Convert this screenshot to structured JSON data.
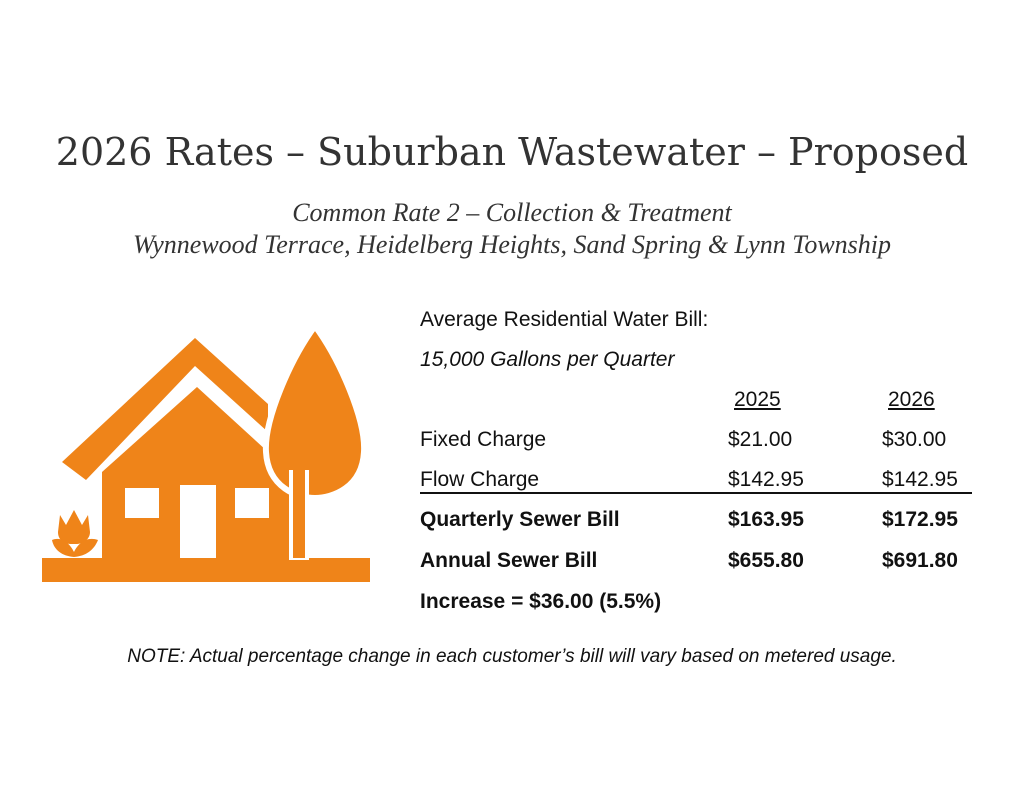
{
  "title": "2026 Rates – Suburban Wastewater – Proposed",
  "subtitle": [
    "Common Rate 2 – Collection & Treatment",
    "Wynnewood Terrace, Heidelberg Heights, Sand Spring & Lynn Township"
  ],
  "info": {
    "heading": "Average Residential Water Bill:",
    "usage": "15,000 Gallons per Quarter"
  },
  "table": {
    "columns": [
      "2025",
      "2026"
    ],
    "rows": [
      [
        "Fixed Charge",
        "$21.00",
        "$30.00"
      ],
      [
        "Flow Charge",
        "$142.95",
        "$142.95"
      ],
      [
        "Quarterly Sewer Bill",
        "$163.95",
        "$172.95"
      ],
      [
        "Annual Sewer Bill",
        "$655.80",
        "$691.80"
      ]
    ]
  },
  "increase": "Increase = $36.00 (5.5%)",
  "note": "NOTE: Actual percentage change in each customer’s bill will vary based on metered usage."
}
